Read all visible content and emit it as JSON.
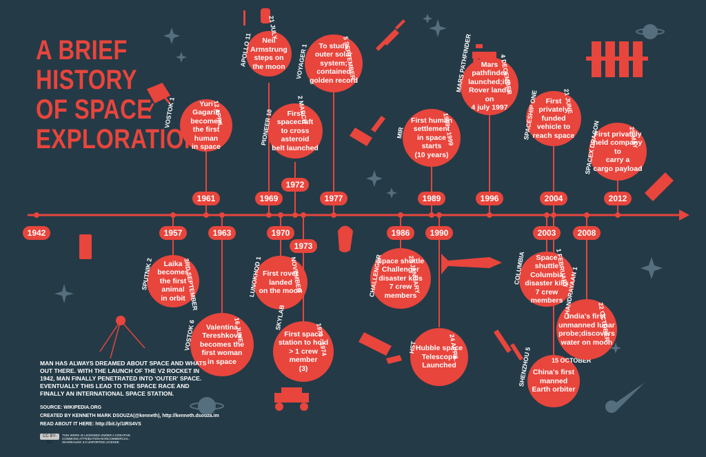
{
  "title_lines": [
    "A BRIEF",
    "HISTORY",
    "OF SPACE",
    "EXPLORATION"
  ],
  "intro": "MAN HAS ALWAYS DREAMED ABOUT SPACE AND WHATS OUT THERE. WITH THE LAUNCH OF THE V2 ROCKET IN 1942, MAN FINALLY PENETRATED INTO 'OUTER' SPACE. EVENTUALLY THIS LEAD TO THE SPACE RACE AND FINALLY AN INTERNATIONAL SPACE STATION.",
  "credits": {
    "source": "SOURCE: WIKIPEDIA.ORG",
    "created": "CREATED BY KENNETH MARK DSOUZA(@kenneth), http://kenneth.dsouza.im",
    "read": "READ ABOUT IT HERE: http://bit.ly/1IRS4VS",
    "cc": "CC BY-NC",
    "license": "THIS WORK IS LICENSED UNDER A CREATIVE COMMONS ATTRIBUTION-NONCOMMERCIAL-SHAREALIKE 3.0 UNPORTED LICENSE"
  },
  "colors": {
    "background": "#243a47",
    "accent": "#e8453c",
    "text": "#ffffff",
    "decor": "#566f7e"
  },
  "years": [
    "1942",
    "1957",
    "1961",
    "1963",
    "1969",
    "1970",
    "1972",
    "1973",
    "1977",
    "1986",
    "1989",
    "1990",
    "1996",
    "2003",
    "2004",
    "2008",
    "2012"
  ],
  "events": [
    {
      "id": "vostok1",
      "mission": "VOSTOK 1",
      "date": "12 APRIL",
      "text": "Yuri\nGagarin becomes\nthe first human\nin space"
    },
    {
      "id": "apollo11",
      "mission": "APOLLO 11",
      "date": "21 JULY",
      "text": "Neil\nArmstrung\nsteps on\nthe moon"
    },
    {
      "id": "pioneer10",
      "mission": "PIONEER 10",
      "date": "2 MARCH",
      "text": "First spacecraft\nto cross asteroid\nbelt launched"
    },
    {
      "id": "voyager1",
      "mission": "VOYAGER 1",
      "date": "5 SEPTEMBER",
      "text": "To study\nouter solar system;\ncontained\ngolden record"
    },
    {
      "id": "mir",
      "mission": "MIR",
      "date": "1989 - 1999",
      "text": "First human\nsettlement\nin space starts\n(10 years)"
    },
    {
      "id": "marspf",
      "mission": "MARS PATHFINDER",
      "date": "4 DECEMBER",
      "text": "Mars pathfinder\nlaunched;its\nRover lands on\n4 july 1997"
    },
    {
      "id": "spaceship1",
      "mission": "SPACESHIP ONE",
      "date": "21 JUNE",
      "text": "First privately\nfunded vehicle to\nreach space"
    },
    {
      "id": "dragon",
      "mission": "SPACEX DRAGON",
      "date": "25 MAY",
      "text": "First privately\nheld company to\ncarry a\ncargo payload"
    },
    {
      "id": "sputnik2",
      "mission": "SPUTNIK 2",
      "date": "3RD SEPTEMBER",
      "text": "Laika becomes\nthe first animal\nin orbit"
    },
    {
      "id": "vostok6",
      "mission": "VOSTOK 6",
      "date": "16 JUNE",
      "text": "Valentina\nTereshkova\nbecomes the\nfirst woman\nin space"
    },
    {
      "id": "lunokhod1",
      "mission": "LUNOKHOD 1",
      "date": "NOVEMBER",
      "text": "First rover\nlanded\non the moon"
    },
    {
      "id": "skylab",
      "mission": "SKYLAB",
      "date": "1973 - 1974",
      "text": "First space\nstation to hold\n> 1 crew member\n(3)"
    },
    {
      "id": "challenger",
      "mission": "CHALLENGER",
      "date": "28 JANUARY",
      "text": "Space shuttle\nChallenger\ndisaster kills\n7 crew members"
    },
    {
      "id": "hst",
      "mission": "HST",
      "date": "24 APRIL",
      "text": "Hubble space\nTelescope\nLaunched"
    },
    {
      "id": "columbia",
      "mission": "COLUMBIA",
      "date": "1 FEBRUARY",
      "text": "Space shuttle\nColumbia\ndisaster kills\n7 crew members"
    },
    {
      "id": "shenzhou5",
      "mission": "SHENZHOU 5",
      "date": "15 OCTOBER",
      "text": "China's first\nmanned\nEarth orbiter"
    },
    {
      "id": "chandrayaan1",
      "mission": "CHANDRAYAAN 1",
      "date": "22 OCTOBER",
      "text": "India's first\nunmanned lunar\nprobe;discovers\nwater on moon"
    }
  ]
}
